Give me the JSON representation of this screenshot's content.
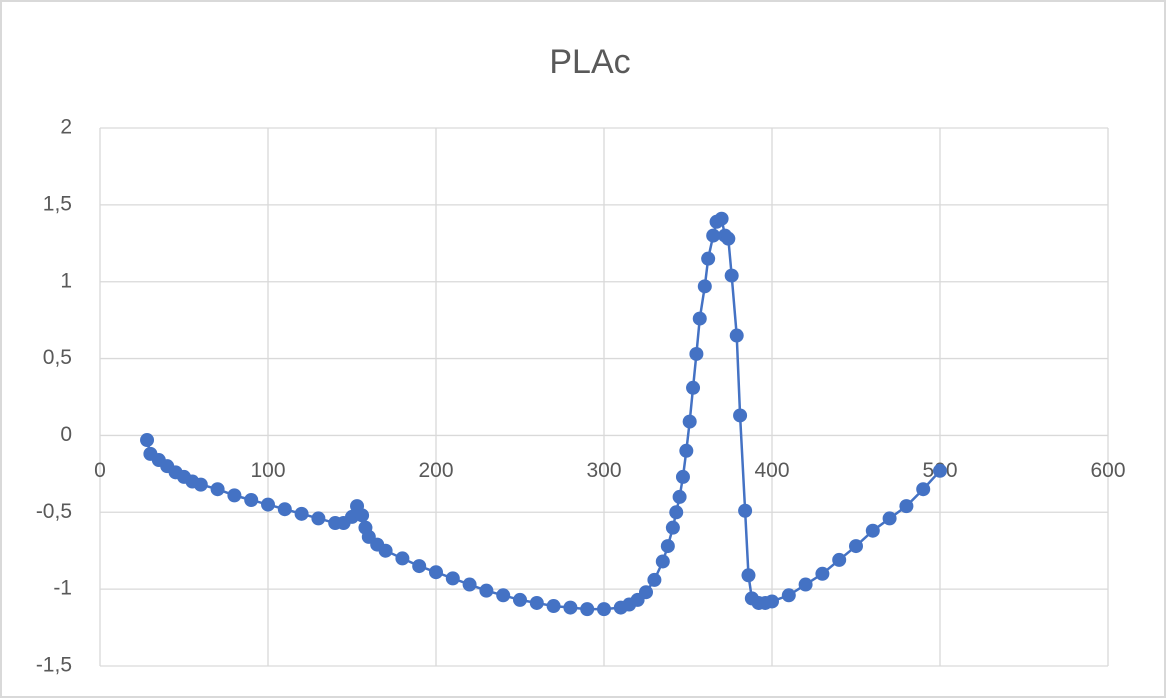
{
  "chart_data": {
    "type": "scatter",
    "title": "PLAc",
    "series": [
      {
        "name": "PLAc",
        "color": "#4472c4",
        "x": [
          28,
          30,
          35,
          40,
          45,
          50,
          55,
          60,
          70,
          80,
          90,
          100,
          110,
          120,
          130,
          140,
          145,
          150,
          153,
          156,
          158,
          160,
          165,
          170,
          180,
          190,
          200,
          210,
          220,
          230,
          240,
          250,
          260,
          270,
          280,
          290,
          300,
          310,
          315,
          320,
          325,
          330,
          335,
          338,
          341,
          343,
          345,
          347,
          349,
          351,
          353,
          355,
          357,
          360,
          362,
          365,
          367,
          370,
          372,
          374,
          376,
          379,
          381,
          384,
          386,
          388,
          392,
          396,
          400,
          410,
          420,
          430,
          440,
          450,
          460,
          470,
          480,
          490,
          500
        ],
        "values": [
          -0.03,
          -0.12,
          -0.16,
          -0.2,
          -0.24,
          -0.27,
          -0.3,
          -0.32,
          -0.35,
          -0.39,
          -0.42,
          -0.45,
          -0.48,
          -0.51,
          -0.54,
          -0.57,
          -0.57,
          -0.53,
          -0.46,
          -0.52,
          -0.6,
          -0.66,
          -0.71,
          -0.75,
          -0.8,
          -0.85,
          -0.89,
          -0.93,
          -0.97,
          -1.01,
          -1.04,
          -1.07,
          -1.09,
          -1.11,
          -1.12,
          -1.13,
          -1.13,
          -1.12,
          -1.1,
          -1.07,
          -1.02,
          -0.94,
          -0.82,
          -0.72,
          -0.6,
          -0.5,
          -0.4,
          -0.27,
          -0.1,
          0.09,
          0.31,
          0.53,
          0.76,
          0.97,
          1.15,
          1.3,
          1.39,
          1.41,
          1.3,
          1.28,
          1.04,
          0.65,
          0.13,
          -0.49,
          -0.91,
          -1.06,
          -1.09,
          -1.09,
          -1.08,
          -1.04,
          -0.97,
          -0.9,
          -0.81,
          -0.72,
          -0.62,
          -0.54,
          -0.46,
          -0.35,
          -0.23
        ]
      }
    ],
    "xlim": [
      0,
      600
    ],
    "xticks": [
      0,
      100,
      200,
      300,
      400,
      500,
      600
    ],
    "ylim": [
      -1.5,
      2
    ],
    "yticks": [
      {
        "value": -1.5,
        "label": "-1,5"
      },
      -1,
      {
        "value": -0.5,
        "label": "-0,5"
      },
      0,
      {
        "value": 0.5,
        "label": "0,5"
      },
      1,
      {
        "value": 1.5,
        "label": "1,5"
      },
      2
    ],
    "grid": true,
    "line": true,
    "markers": true
  }
}
